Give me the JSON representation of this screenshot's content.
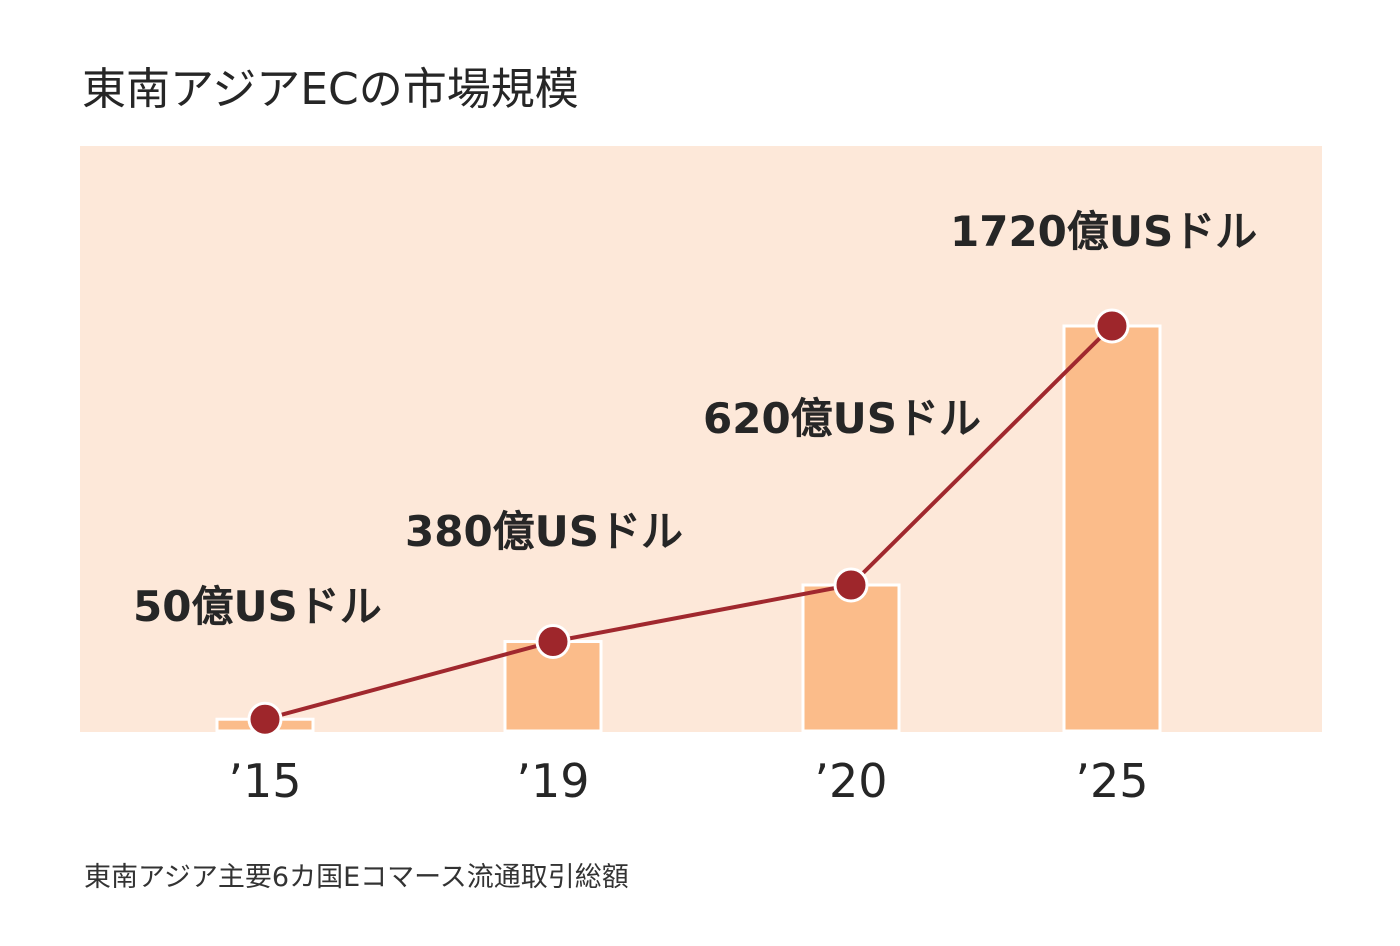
{
  "title": "東南アジアECの市場規模",
  "footnote": "東南アジア主要6カ国Eコマース流通取引総額",
  "colors": {
    "panel_background": "#fde8d9",
    "bar": "#fbbc8a",
    "line": "#a0282e",
    "marker": "#9e262b",
    "text": "#262626"
  },
  "chart_data": {
    "type": "bar",
    "title": "東南アジアECの市場規模",
    "xlabel": "",
    "ylabel": "",
    "unit": "億USドル",
    "grid": false,
    "categories": [
      "’15",
      "’19",
      "’20",
      "’25"
    ],
    "values": [
      50,
      380,
      620,
      1720
    ],
    "data_labels": [
      "50億USドル",
      "380億USドル",
      "620億USドル",
      "1720億USドル"
    ],
    "line_overlay": true
  }
}
